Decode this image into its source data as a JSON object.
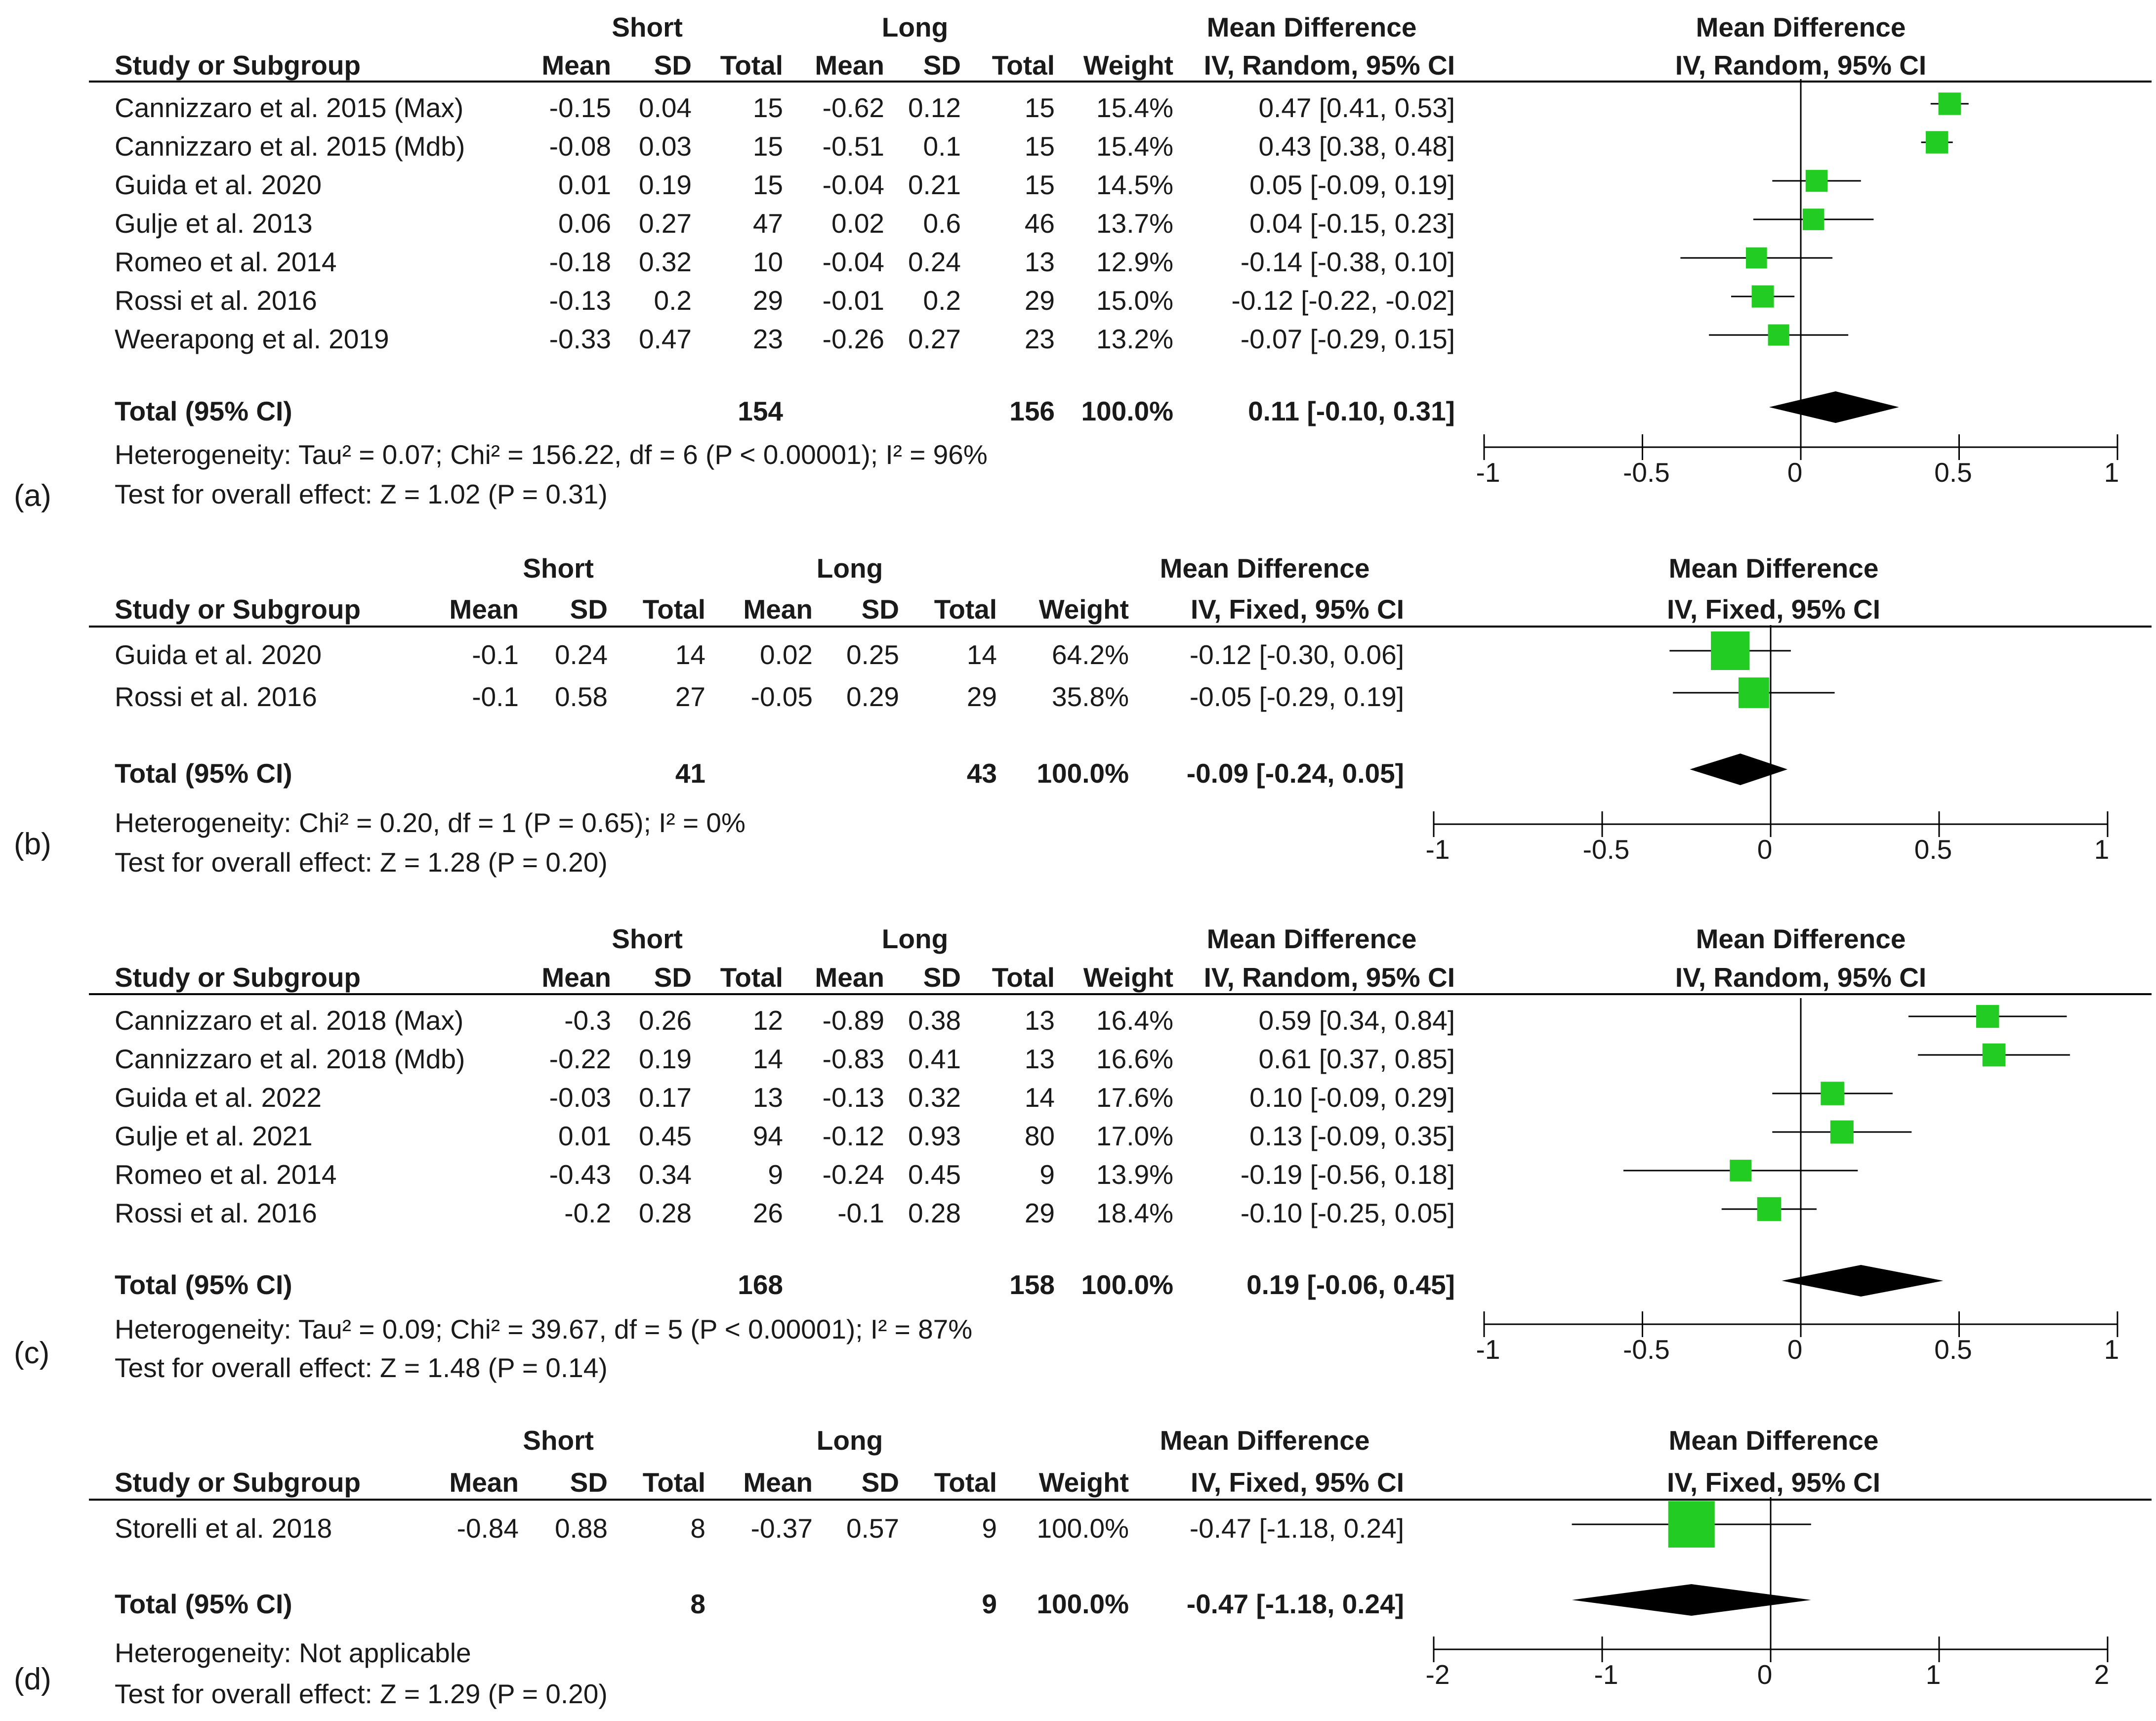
{
  "chart_data": [
    {
      "type": "forest",
      "panel_label": "(a)",
      "method": "IV, Random, 95% CI",
      "group1": "Short",
      "group2": "Long",
      "headers": {
        "study": "Study or Subgroup",
        "mean": "Mean",
        "sd": "SD",
        "total": "Total",
        "weight": "Weight",
        "md": "Mean Difference"
      },
      "xlim": [
        -1,
        1
      ],
      "ticks": [
        "-1",
        "-0.5",
        "0",
        "0.5",
        "1"
      ],
      "tick_values": [
        -1,
        -0.5,
        0,
        0.5,
        1
      ],
      "studies": [
        {
          "name": "Cannizzaro et al. 2015 (Max)",
          "m1": "-0.15",
          "sd1": "0.04",
          "n1": "15",
          "m2": "-0.62",
          "sd2": "0.12",
          "n2": "15",
          "weight": "15.4%",
          "ci_text": "0.47 [0.41, 0.53]",
          "md": 0.47,
          "lo": 0.41,
          "hi": 0.53,
          "w": 15.4
        },
        {
          "name": "Cannizzaro et al. 2015 (Mdb)",
          "m1": "-0.08",
          "sd1": "0.03",
          "n1": "15",
          "m2": "-0.51",
          "sd2": "0.1",
          "n2": "15",
          "weight": "15.4%",
          "ci_text": "0.43 [0.38, 0.48]",
          "md": 0.43,
          "lo": 0.38,
          "hi": 0.48,
          "w": 15.4
        },
        {
          "name": "Guida et al. 2020",
          "m1": "0.01",
          "sd1": "0.19",
          "n1": "15",
          "m2": "-0.04",
          "sd2": "0.21",
          "n2": "15",
          "weight": "14.5%",
          "ci_text": "0.05 [-0.09, 0.19]",
          "md": 0.05,
          "lo": -0.09,
          "hi": 0.19,
          "w": 14.5
        },
        {
          "name": "Gulje et al. 2013",
          "m1": "0.06",
          "sd1": "0.27",
          "n1": "47",
          "m2": "0.02",
          "sd2": "0.6",
          "n2": "46",
          "weight": "13.7%",
          "ci_text": "0.04 [-0.15, 0.23]",
          "md": 0.04,
          "lo": -0.15,
          "hi": 0.23,
          "w": 13.7
        },
        {
          "name": "Romeo et al. 2014",
          "m1": "-0.18",
          "sd1": "0.32",
          "n1": "10",
          "m2": "-0.04",
          "sd2": "0.24",
          "n2": "13",
          "weight": "12.9%",
          "ci_text": "-0.14 [-0.38, 0.10]",
          "md": -0.14,
          "lo": -0.38,
          "hi": 0.1,
          "w": 12.9
        },
        {
          "name": "Rossi et al. 2016",
          "m1": "-0.13",
          "sd1": "0.2",
          "n1": "29",
          "m2": "-0.01",
          "sd2": "0.2",
          "n2": "29",
          "weight": "15.0%",
          "ci_text": "-0.12 [-0.22, -0.02]",
          "md": -0.12,
          "lo": -0.22,
          "hi": -0.02,
          "w": 15.0
        },
        {
          "name": "Weerapong et al. 2019",
          "m1": "-0.33",
          "sd1": "0.47",
          "n1": "23",
          "m2": "-0.26",
          "sd2": "0.27",
          "n2": "23",
          "weight": "13.2%",
          "ci_text": "-0.07 [-0.29, 0.15]",
          "md": -0.07,
          "lo": -0.29,
          "hi": 0.15,
          "w": 13.2
        }
      ],
      "total": {
        "label": "Total (95% CI)",
        "n1": "154",
        "n2": "156",
        "weight": "100.0%",
        "ci_text": "0.11 [-0.10, 0.31]",
        "md": 0.11,
        "lo": -0.1,
        "hi": 0.31
      },
      "heterogeneity": "Heterogeneity: Tau² = 0.07; Chi² = 156.22, df = 6 (P < 0.00001); I² = 96%",
      "overall": "Test for overall effect: Z = 1.02 (P = 0.31)"
    },
    {
      "type": "forest",
      "panel_label": "(b)",
      "method": "IV, Fixed, 95% CI",
      "group1": "Short",
      "group2": "Long",
      "headers": {
        "study": "Study or Subgroup",
        "mean": "Mean",
        "sd": "SD",
        "total": "Total",
        "weight": "Weight",
        "md": "Mean Difference"
      },
      "xlim": [
        -1,
        1
      ],
      "ticks": [
        "-1",
        "-0.5",
        "0",
        "0.5",
        "1"
      ],
      "tick_values": [
        -1,
        -0.5,
        0,
        0.5,
        1
      ],
      "studies": [
        {
          "name": "Guida et al. 2020",
          "m1": "-0.1",
          "sd1": "0.24",
          "n1": "14",
          "m2": "0.02",
          "sd2": "0.25",
          "n2": "14",
          "weight": "64.2%",
          "ci_text": "-0.12 [-0.30, 0.06]",
          "md": -0.12,
          "lo": -0.3,
          "hi": 0.06,
          "w": 64.2
        },
        {
          "name": "Rossi et al. 2016",
          "m1": "-0.1",
          "sd1": "0.58",
          "n1": "27",
          "m2": "-0.05",
          "sd2": "0.29",
          "n2": "29",
          "weight": "35.8%",
          "ci_text": "-0.05 [-0.29, 0.19]",
          "md": -0.05,
          "lo": -0.29,
          "hi": 0.19,
          "w": 35.8
        }
      ],
      "total": {
        "label": "Total (95% CI)",
        "n1": "41",
        "n2": "43",
        "weight": "100.0%",
        "ci_text": "-0.09 [-0.24, 0.05]",
        "md": -0.09,
        "lo": -0.24,
        "hi": 0.05
      },
      "heterogeneity": "Heterogeneity: Chi² = 0.20, df = 1 (P = 0.65); I² = 0%",
      "overall": "Test for overall effect: Z = 1.28 (P = 0.20)"
    },
    {
      "type": "forest",
      "panel_label": "(c)",
      "method": "IV, Random, 95% CI",
      "group1": "Short",
      "group2": "Long",
      "headers": {
        "study": "Study or Subgroup",
        "mean": "Mean",
        "sd": "SD",
        "total": "Total",
        "weight": "Weight",
        "md": "Mean Difference"
      },
      "xlim": [
        -1,
        1
      ],
      "ticks": [
        "-1",
        "-0.5",
        "0",
        "0.5",
        "1"
      ],
      "tick_values": [
        -1,
        -0.5,
        0,
        0.5,
        1
      ],
      "studies": [
        {
          "name": "Cannizzaro et al. 2018 (Max)",
          "m1": "-0.3",
          "sd1": "0.26",
          "n1": "12",
          "m2": "-0.89",
          "sd2": "0.38",
          "n2": "13",
          "weight": "16.4%",
          "ci_text": "0.59 [0.34, 0.84]",
          "md": 0.59,
          "lo": 0.34,
          "hi": 0.84,
          "w": 16.4
        },
        {
          "name": "Cannizzaro et al. 2018 (Mdb)",
          "m1": "-0.22",
          "sd1": "0.19",
          "n1": "14",
          "m2": "-0.83",
          "sd2": "0.41",
          "n2": "13",
          "weight": "16.6%",
          "ci_text": "0.61 [0.37, 0.85]",
          "md": 0.61,
          "lo": 0.37,
          "hi": 0.85,
          "w": 16.6
        },
        {
          "name": "Guida et al. 2022",
          "m1": "-0.03",
          "sd1": "0.17",
          "n1": "13",
          "m2": "-0.13",
          "sd2": "0.32",
          "n2": "14",
          "weight": "17.6%",
          "ci_text": "0.10 [-0.09, 0.29]",
          "md": 0.1,
          "lo": -0.09,
          "hi": 0.29,
          "w": 17.6
        },
        {
          "name": "Gulje et al. 2021",
          "m1": "0.01",
          "sd1": "0.45",
          "n1": "94",
          "m2": "-0.12",
          "sd2": "0.93",
          "n2": "80",
          "weight": "17.0%",
          "ci_text": "0.13 [-0.09, 0.35]",
          "md": 0.13,
          "lo": -0.09,
          "hi": 0.35,
          "w": 17.0
        },
        {
          "name": "Romeo et al. 2014",
          "m1": "-0.43",
          "sd1": "0.34",
          "n1": "9",
          "m2": "-0.24",
          "sd2": "0.45",
          "n2": "9",
          "weight": "13.9%",
          "ci_text": "-0.19 [-0.56, 0.18]",
          "md": -0.19,
          "lo": -0.56,
          "hi": 0.18,
          "w": 13.9
        },
        {
          "name": "Rossi et al. 2016",
          "m1": "-0.2",
          "sd1": "0.28",
          "n1": "26",
          "m2": "-0.1",
          "sd2": "0.28",
          "n2": "29",
          "weight": "18.4%",
          "ci_text": "-0.10 [-0.25, 0.05]",
          "md": -0.1,
          "lo": -0.25,
          "hi": 0.05,
          "w": 18.4
        }
      ],
      "total": {
        "label": "Total (95% CI)",
        "n1": "168",
        "n2": "158",
        "weight": "100.0%",
        "ci_text": "0.19 [-0.06, 0.45]",
        "md": 0.19,
        "lo": -0.06,
        "hi": 0.45
      },
      "heterogeneity": "Heterogeneity: Tau² = 0.09; Chi² = 39.67, df = 5 (P < 0.00001); I² = 87%",
      "overall": "Test for overall effect: Z = 1.48 (P = 0.14)"
    },
    {
      "type": "forest",
      "panel_label": "(d)",
      "method": "IV, Fixed, 95% CI",
      "group1": "Short",
      "group2": "Long",
      "headers": {
        "study": "Study or Subgroup",
        "mean": "Mean",
        "sd": "SD",
        "total": "Total",
        "weight": "Weight",
        "md": "Mean Difference"
      },
      "xlim": [
        -2,
        2
      ],
      "ticks": [
        "-2",
        "-1",
        "0",
        "1",
        "2"
      ],
      "tick_values": [
        -2,
        -1,
        0,
        1,
        2
      ],
      "studies": [
        {
          "name": "Storelli et al. 2018",
          "m1": "-0.84",
          "sd1": "0.88",
          "n1": "8",
          "m2": "-0.37",
          "sd2": "0.57",
          "n2": "9",
          "weight": "100.0%",
          "ci_text": "-0.47 [-1.18, 0.24]",
          "md": -0.47,
          "lo": -1.18,
          "hi": 0.24,
          "w": 100.0
        }
      ],
      "total": {
        "label": "Total (95% CI)",
        "n1": "8",
        "n2": "9",
        "weight": "100.0%",
        "ci_text": "-0.47 [-1.18, 0.24]",
        "md": -0.47,
        "lo": -1.18,
        "hi": 0.24
      },
      "heterogeneity": "Heterogeneity: Not applicable",
      "overall": "Test for overall effect: Z = 1.29 (P = 0.20)"
    }
  ],
  "colors": {
    "marker": "#22cc22",
    "diamond": "#000000",
    "line": "#000000"
  }
}
